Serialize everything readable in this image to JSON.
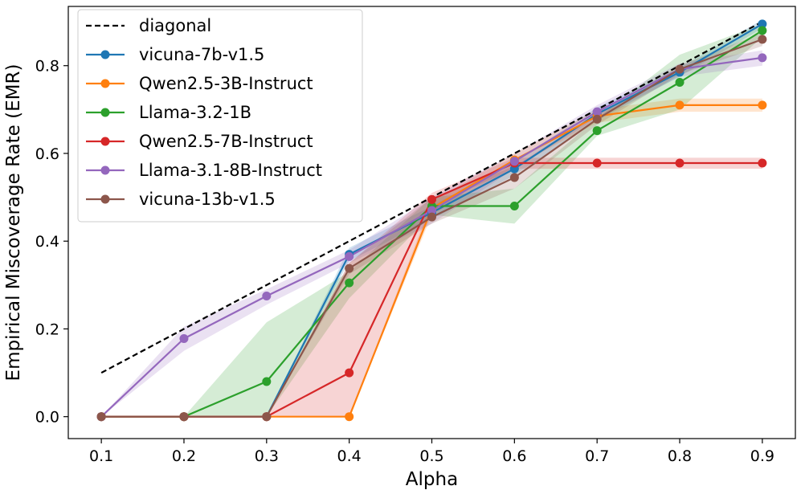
{
  "chart_data": {
    "type": "line",
    "title": "",
    "xlabel": "Alpha",
    "ylabel": "Empirical Miscoverage Rate (EMR)",
    "x": [
      0.1,
      0.2,
      0.3,
      0.4,
      0.5,
      0.6,
      0.7,
      0.8,
      0.9
    ],
    "xticks": [
      "0.1",
      "0.2",
      "0.3",
      "0.4",
      "0.5",
      "0.6",
      "0.7",
      "0.8",
      "0.9"
    ],
    "yticks": [
      "0.0",
      "0.2",
      "0.4",
      "0.6",
      "0.8"
    ],
    "xlim": [
      0.06,
      0.94
    ],
    "ylim": [
      -0.05,
      0.935
    ],
    "grid": false,
    "legend_position": "top-left",
    "reference_line": {
      "name": "diagonal",
      "color": "#000000",
      "style": "dashed",
      "x": [
        0.1,
        0.9
      ],
      "y": [
        0.1,
        0.9
      ]
    },
    "series": [
      {
        "name": "vicuna-7b-v1.5",
        "color": "#1f77b4",
        "values": [
          0.0,
          0.0,
          0.0,
          0.37,
          0.465,
          0.565,
          0.69,
          0.785,
          0.895
        ],
        "lower": [
          0.0,
          0.0,
          0.0,
          0.355,
          0.45,
          0.55,
          0.675,
          0.775,
          0.885
        ],
        "upper": [
          0.0,
          0.0,
          0.0,
          0.385,
          0.48,
          0.58,
          0.705,
          0.795,
          0.905
        ]
      },
      {
        "name": "Qwen2.5-3B-Instruct",
        "color": "#ff7f0e",
        "values": [
          0.0,
          0.0,
          0.0,
          0.0,
          0.475,
          0.585,
          0.685,
          0.71,
          0.71
        ],
        "lower": [
          0.0,
          0.0,
          0.0,
          0.0,
          0.46,
          0.57,
          0.67,
          0.695,
          0.695
        ],
        "upper": [
          0.0,
          0.0,
          0.0,
          0.0,
          0.49,
          0.6,
          0.7,
          0.725,
          0.725
        ]
      },
      {
        "name": "Llama-3.2-1B",
        "color": "#2ca02c",
        "values": [
          0.0,
          0.0,
          0.08,
          0.305,
          0.48,
          0.48,
          0.652,
          0.762,
          0.88
        ],
        "lower": [
          0.0,
          0.0,
          0.0,
          0.27,
          0.46,
          0.44,
          0.64,
          0.7,
          0.865
        ],
        "upper": [
          0.0,
          0.0,
          0.215,
          0.33,
          0.5,
          0.52,
          0.68,
          0.825,
          0.895
        ]
      },
      {
        "name": "Qwen2.5-7B-Instruct",
        "color": "#d62728",
        "values": [
          0.0,
          0.0,
          0.0,
          0.1,
          0.495,
          0.578,
          0.578,
          0.578,
          0.578
        ],
        "lower": [
          0.0,
          0.0,
          0.0,
          0.0,
          0.48,
          0.565,
          0.565,
          0.565,
          0.565
        ],
        "upper": [
          0.0,
          0.0,
          0.0,
          0.35,
          0.51,
          0.59,
          0.59,
          0.59,
          0.59
        ]
      },
      {
        "name": "Llama-3.1-8B-Instruct",
        "color": "#9467bd",
        "values": [
          0.0,
          0.178,
          0.275,
          0.365,
          0.47,
          0.582,
          0.695,
          0.792,
          0.818
        ],
        "lower": [
          0.0,
          0.15,
          0.255,
          0.35,
          0.44,
          0.565,
          0.68,
          0.775,
          0.8
        ],
        "upper": [
          0.0,
          0.205,
          0.29,
          0.38,
          0.5,
          0.6,
          0.71,
          0.805,
          0.835
        ]
      },
      {
        "name": "vicuna-13b-v1.5",
        "color": "#8c564b",
        "values": [
          0.0,
          0.0,
          0.0,
          0.338,
          0.455,
          0.545,
          0.678,
          0.792,
          0.86
        ],
        "lower": [
          0.0,
          0.0,
          0.0,
          0.325,
          0.44,
          0.52,
          0.665,
          0.78,
          0.845
        ],
        "upper": [
          0.0,
          0.0,
          0.0,
          0.35,
          0.5,
          0.57,
          0.69,
          0.8,
          0.875
        ]
      }
    ]
  }
}
